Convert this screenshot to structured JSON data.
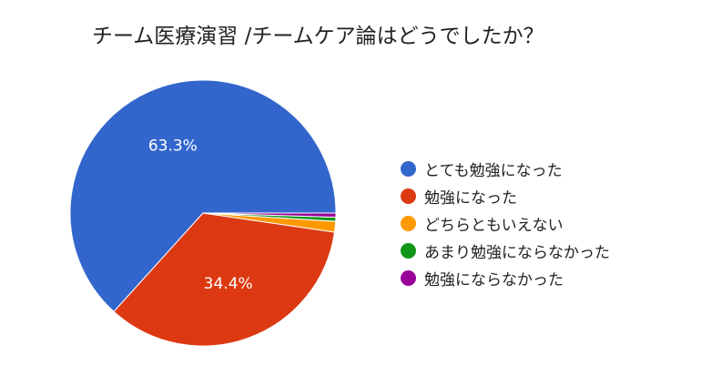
{
  "chart_data": {
    "type": "pie",
    "title": "チーム医療演習 /チームケア論はどうでしたか？",
    "slices": [
      {
        "label": "とても勉強になった",
        "value": 63.3,
        "color": "#3366cc",
        "data_label": "63.3%"
      },
      {
        "label": "勉強になった",
        "value": 34.4,
        "color": "#dc3912",
        "data_label": "34.4%"
      },
      {
        "label": "どちらともいえない",
        "value": 1.3,
        "color": "#ff9900",
        "data_label": ""
      },
      {
        "label": "あまり勉強にならなかった",
        "value": 0.5,
        "color": "#109618",
        "data_label": ""
      },
      {
        "label": "勉強にならなかった",
        "value": 0.5,
        "color": "#990099",
        "data_label": ""
      }
    ],
    "legend_position": "right"
  }
}
